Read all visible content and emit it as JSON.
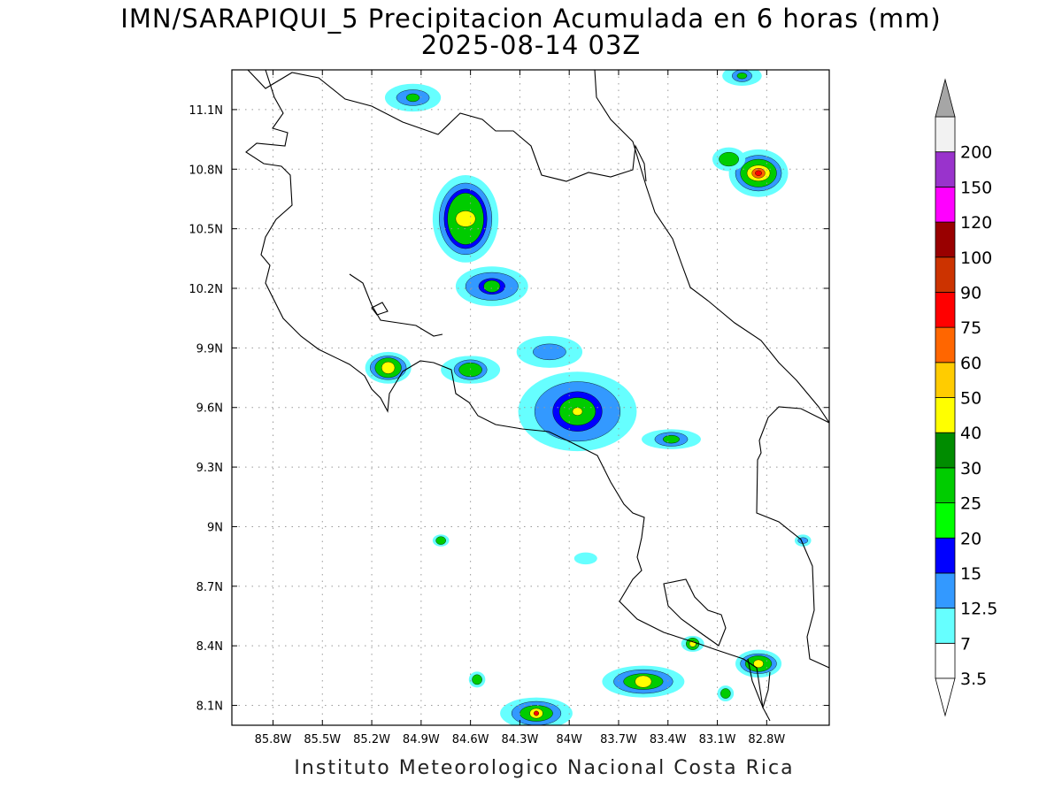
{
  "title": {
    "line1": "IMN/SARAPIQUI_5 Precipitacion Acumulada en 6 horas (mm)",
    "line2": "2025-08-14 03Z"
  },
  "credit": "Instituto Meteorologico Nacional Costa Rica",
  "axes": {
    "lon_range": [
      -86.05,
      -82.42
    ],
    "lat_range": [
      8.0,
      11.3
    ],
    "x_ticks": [
      {
        "value": -85.8,
        "label": "85.8W"
      },
      {
        "value": -85.5,
        "label": "85.5W"
      },
      {
        "value": -85.2,
        "label": "85.2W"
      },
      {
        "value": -84.9,
        "label": "84.9W"
      },
      {
        "value": -84.6,
        "label": "84.6W"
      },
      {
        "value": -84.3,
        "label": "84.3W"
      },
      {
        "value": -84.0,
        "label": "84W"
      },
      {
        "value": -83.7,
        "label": "83.7W"
      },
      {
        "value": -83.4,
        "label": "83.4W"
      },
      {
        "value": -83.1,
        "label": "83.1W"
      },
      {
        "value": -82.8,
        "label": "82.8W"
      }
    ],
    "y_ticks": [
      {
        "value": 8.1,
        "label": "8.1N"
      },
      {
        "value": 8.4,
        "label": "8.4N"
      },
      {
        "value": 8.7,
        "label": "8.7N"
      },
      {
        "value": 9.0,
        "label": "9N"
      },
      {
        "value": 9.3,
        "label": "9.3N"
      },
      {
        "value": 9.6,
        "label": "9.6N"
      },
      {
        "value": 9.9,
        "label": "9.9N"
      },
      {
        "value": 10.2,
        "label": "10.2N"
      },
      {
        "value": 10.5,
        "label": "10.5N"
      },
      {
        "value": 10.8,
        "label": "10.8N"
      },
      {
        "value": 11.1,
        "label": "11.1N"
      }
    ],
    "grid": "dotted"
  },
  "colorbar": {
    "placement": "right",
    "top_arrow_color": "#a6a6a6",
    "bottom_arrow_color": "#ffffff",
    "bins": [
      {
        "color": "#ffffff"
      },
      {
        "color": "#66ffff"
      },
      {
        "color": "#3399ff"
      },
      {
        "color": "#0000ff"
      },
      {
        "color": "#00ff00"
      },
      {
        "color": "#00cc00"
      },
      {
        "color": "#008c00"
      },
      {
        "color": "#ffff00"
      },
      {
        "color": "#ffcc00"
      },
      {
        "color": "#ff6600"
      },
      {
        "color": "#ff0000"
      },
      {
        "color": "#cc3300"
      },
      {
        "color": "#990000"
      },
      {
        "color": "#ff00ff"
      },
      {
        "color": "#9933cc"
      },
      {
        "color": "#f2f2f2"
      }
    ],
    "labels": [
      "3.5",
      "7",
      "12.5",
      "15",
      "20",
      "25",
      "30",
      "40",
      "50",
      "60",
      "75",
      "90",
      "100",
      "120",
      "150",
      "200"
    ]
  },
  "precip_cells": [
    {
      "name": "ne-nicaragua-coast",
      "lon": -82.85,
      "lat": 10.78,
      "levels": [
        {
          "rx": 0.18,
          "ry": 0.12,
          "c": "#66ffff"
        },
        {
          "rx": 0.14,
          "ry": 0.09,
          "c": "#3399ff"
        },
        {
          "rx": 0.11,
          "ry": 0.07,
          "c": "#00cc00"
        },
        {
          "rx": 0.07,
          "ry": 0.04,
          "c": "#ffff00"
        },
        {
          "rx": 0.04,
          "ry": 0.025,
          "c": "#ff6600"
        },
        {
          "rx": 0.02,
          "ry": 0.013,
          "c": "#ff0000"
        }
      ]
    },
    {
      "name": "ne-small",
      "lon": -83.03,
      "lat": 10.85,
      "levels": [
        {
          "rx": 0.1,
          "ry": 0.06,
          "c": "#66ffff"
        },
        {
          "rx": 0.06,
          "ry": 0.035,
          "c": "#00cc00"
        }
      ]
    },
    {
      "name": "top-right-strip",
      "lon": -82.95,
      "lat": 11.27,
      "levels": [
        {
          "rx": 0.12,
          "ry": 0.05,
          "c": "#66ffff"
        },
        {
          "rx": 0.06,
          "ry": 0.03,
          "c": "#3399ff"
        },
        {
          "rx": 0.03,
          "ry": 0.015,
          "c": "#00cc00"
        }
      ]
    },
    {
      "name": "lake-nicaragua",
      "lon": -84.95,
      "lat": 11.16,
      "levels": [
        {
          "rx": 0.17,
          "ry": 0.07,
          "c": "#66ffff"
        },
        {
          "rx": 0.1,
          "ry": 0.04,
          "c": "#3399ff"
        },
        {
          "rx": 0.04,
          "ry": 0.02,
          "c": "#00cc00"
        }
      ]
    },
    {
      "name": "san-carlos",
      "lon": -84.63,
      "lat": 10.55,
      "levels": [
        {
          "rx": 0.2,
          "ry": 0.22,
          "c": "#66ffff"
        },
        {
          "rx": 0.16,
          "ry": 0.18,
          "c": "#3399ff"
        },
        {
          "rx": 0.13,
          "ry": 0.15,
          "c": "#0000ff"
        },
        {
          "rx": 0.11,
          "ry": 0.13,
          "c": "#00cc00"
        },
        {
          "rx": 0.06,
          "ry": 0.04,
          "c": "#ffff00"
        }
      ]
    },
    {
      "name": "sarapiqui",
      "lon": -84.47,
      "lat": 10.21,
      "levels": [
        {
          "rx": 0.22,
          "ry": 0.1,
          "c": "#66ffff"
        },
        {
          "rx": 0.16,
          "ry": 0.07,
          "c": "#3399ff"
        },
        {
          "rx": 0.08,
          "ry": 0.04,
          "c": "#0000ff"
        },
        {
          "rx": 0.05,
          "ry": 0.03,
          "c": "#00cc00"
        }
      ]
    },
    {
      "name": "central-north",
      "lon": -84.12,
      "lat": 9.88,
      "levels": [
        {
          "rx": 0.2,
          "ry": 0.08,
          "c": "#66ffff"
        },
        {
          "rx": 0.1,
          "ry": 0.04,
          "c": "#3399ff"
        }
      ]
    },
    {
      "name": "guanacaste",
      "lon": -85.1,
      "lat": 9.8,
      "levels": [
        {
          "rx": 0.14,
          "ry": 0.08,
          "c": "#66ffff"
        },
        {
          "rx": 0.11,
          "ry": 0.06,
          "c": "#3399ff"
        },
        {
          "rx": 0.08,
          "ry": 0.05,
          "c": "#00cc00"
        },
        {
          "rx": 0.04,
          "ry": 0.03,
          "c": "#ffff00"
        }
      ]
    },
    {
      "name": "puntarenas",
      "lon": -84.6,
      "lat": 9.79,
      "levels": [
        {
          "rx": 0.18,
          "ry": 0.07,
          "c": "#66ffff"
        },
        {
          "rx": 0.1,
          "ry": 0.05,
          "c": "#3399ff"
        },
        {
          "rx": 0.07,
          "ry": 0.035,
          "c": "#00cc00"
        }
      ]
    },
    {
      "name": "central-valley",
      "lon": -83.95,
      "lat": 9.58,
      "levels": [
        {
          "rx": 0.36,
          "ry": 0.2,
          "c": "#66ffff"
        },
        {
          "rx": 0.26,
          "ry": 0.15,
          "c": "#3399ff"
        },
        {
          "rx": 0.15,
          "ry": 0.1,
          "c": "#0000ff"
        },
        {
          "rx": 0.11,
          "ry": 0.07,
          "c": "#00cc00"
        },
        {
          "rx": 0.03,
          "ry": 0.02,
          "c": "#ffff00"
        }
      ]
    },
    {
      "name": "caribbean-south",
      "lon": -83.38,
      "lat": 9.44,
      "levels": [
        {
          "rx": 0.18,
          "ry": 0.05,
          "c": "#66ffff"
        },
        {
          "rx": 0.1,
          "ry": 0.035,
          "c": "#3399ff"
        },
        {
          "rx": 0.05,
          "ry": 0.02,
          "c": "#00cc00"
        }
      ]
    },
    {
      "name": "osa-south-1",
      "lon": -83.55,
      "lat": 8.22,
      "levels": [
        {
          "rx": 0.25,
          "ry": 0.08,
          "c": "#66ffff"
        },
        {
          "rx": 0.18,
          "ry": 0.06,
          "c": "#3399ff"
        },
        {
          "rx": 0.12,
          "ry": 0.04,
          "c": "#00cc00"
        },
        {
          "rx": 0.05,
          "ry": 0.03,
          "c": "#ffff00"
        }
      ]
    },
    {
      "name": "bottom-left",
      "lon": -84.2,
      "lat": 8.06,
      "levels": [
        {
          "rx": 0.22,
          "ry": 0.08,
          "c": "#66ffff"
        },
        {
          "rx": 0.15,
          "ry": 0.06,
          "c": "#3399ff"
        },
        {
          "rx": 0.1,
          "ry": 0.04,
          "c": "#00cc00"
        },
        {
          "rx": 0.04,
          "ry": 0.025,
          "c": "#ffff00"
        },
        {
          "rx": 0.015,
          "ry": 0.012,
          "c": "#ff0000"
        }
      ]
    },
    {
      "name": "panama-border",
      "lon": -82.85,
      "lat": 8.31,
      "levels": [
        {
          "rx": 0.14,
          "ry": 0.07,
          "c": "#66ffff"
        },
        {
          "rx": 0.11,
          "ry": 0.05,
          "c": "#3399ff"
        },
        {
          "rx": 0.08,
          "ry": 0.04,
          "c": "#00cc00"
        },
        {
          "rx": 0.03,
          "ry": 0.02,
          "c": "#ffff00"
        }
      ]
    },
    {
      "name": "golfito",
      "lon": -83.25,
      "lat": 8.41,
      "levels": [
        {
          "rx": 0.07,
          "ry": 0.04,
          "c": "#66ffff"
        },
        {
          "rx": 0.04,
          "ry": 0.03,
          "c": "#00cc00"
        },
        {
          "rx": 0.02,
          "ry": 0.015,
          "c": "#ffff00"
        }
      ]
    },
    {
      "name": "mid-west-dot",
      "lon": -84.78,
      "lat": 8.93,
      "levels": [
        {
          "rx": 0.05,
          "ry": 0.03,
          "c": "#66ffff"
        },
        {
          "rx": 0.03,
          "ry": 0.02,
          "c": "#00cc00"
        }
      ]
    },
    {
      "name": "south-dot",
      "lon": -84.56,
      "lat": 8.23,
      "levels": [
        {
          "rx": 0.05,
          "ry": 0.04,
          "c": "#66ffff"
        },
        {
          "rx": 0.03,
          "ry": 0.025,
          "c": "#00cc00"
        }
      ]
    },
    {
      "name": "east-panama",
      "lon": -82.58,
      "lat": 8.93,
      "levels": [
        {
          "rx": 0.05,
          "ry": 0.03,
          "c": "#66ffff"
        },
        {
          "rx": 0.03,
          "ry": 0.015,
          "c": "#3399ff"
        }
      ]
    },
    {
      "name": "south-mid",
      "lon": -83.05,
      "lat": 8.16,
      "levels": [
        {
          "rx": 0.05,
          "ry": 0.04,
          "c": "#66ffff"
        },
        {
          "rx": 0.03,
          "ry": 0.025,
          "c": "#00cc00"
        }
      ]
    },
    {
      "name": "osa-small",
      "lon": -83.9,
      "lat": 8.84,
      "levels": [
        {
          "rx": 0.07,
          "ry": 0.03,
          "c": "#66ffff"
        }
      ]
    }
  ]
}
